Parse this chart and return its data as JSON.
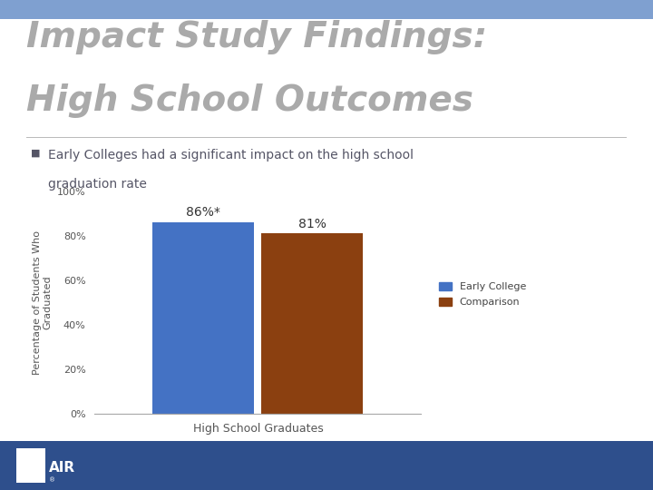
{
  "title_line1": "Impact Study Findings:",
  "title_line2": "High School Outcomes",
  "title_color": "#aaaaaa",
  "bullet_text": " Early Colleges had a significant impact on the high school\n   graduation rate",
  "bullet_color": "#555566",
  "bullet_square_color": "#555566",
  "early_college_value": 86,
  "comparison_value": 81,
  "early_college_label": "86%*",
  "comparison_label": "81%",
  "early_college_color": "#4472C4",
  "comparison_color": "#8B4010",
  "ylabel": "Percentage of Students Who\nGraduated",
  "xlabel": "High School Graduates",
  "ylim": [
    0,
    100
  ],
  "yticks": [
    0,
    20,
    40,
    60,
    80,
    100
  ],
  "ytick_labels": [
    "0%",
    "20%",
    "40%",
    "60%",
    "80%",
    "100%"
  ],
  "legend_early": "Early College",
  "legend_comparison": "Comparison",
  "slide_bg": "#ffffff",
  "header_stripe_color": "#7fa0d0",
  "footer_bg": "#2E4F8C",
  "bar_width": 0.28,
  "label_fontsize": 10,
  "axis_fontsize": 8,
  "ylabel_fontsize": 8,
  "legend_fontsize": 8,
  "title_fontsize": 28
}
